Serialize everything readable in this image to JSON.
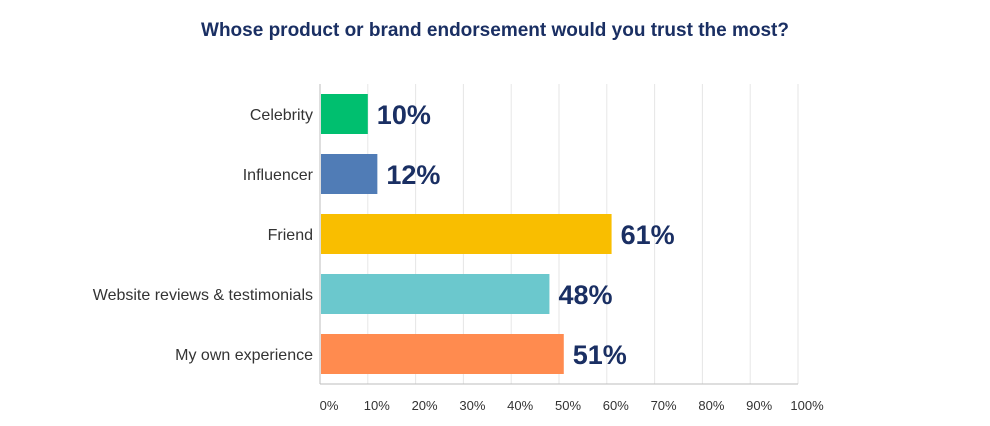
{
  "chart_data": {
    "type": "bar",
    "orientation": "horizontal",
    "title": "Whose product or brand endorsement would you trust the most?",
    "categories": [
      "Celebrity",
      "Influencer",
      "Friend",
      "Website reviews & testimonials",
      "My own experience"
    ],
    "values": [
      10,
      12,
      61,
      48,
      51
    ],
    "value_labels": [
      "10%",
      "12%",
      "61%",
      "48%",
      "51%"
    ],
    "colors": [
      "#00bf6f",
      "#507cb6",
      "#f9be00",
      "#6bc8cd",
      "#ff8b4f"
    ],
    "xlim": [
      0,
      100
    ],
    "x_ticks": [
      0,
      10,
      20,
      30,
      40,
      50,
      60,
      70,
      80,
      90,
      100
    ],
    "x_tick_labels": [
      "0%",
      "10%",
      "20%",
      "30%",
      "40%",
      "50%",
      "60%",
      "70%",
      "80%",
      "90%",
      "100%"
    ],
    "xlabel": "",
    "ylabel": "",
    "grid": "vertical",
    "legend": "none"
  }
}
